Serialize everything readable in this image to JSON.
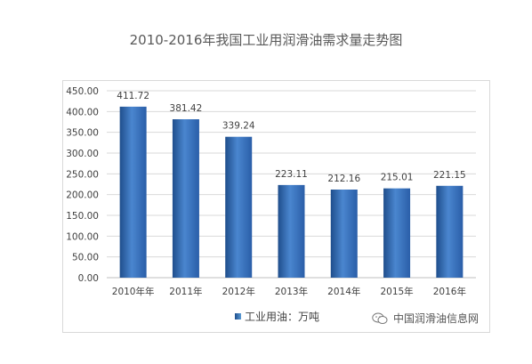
{
  "chart_data": {
    "type": "bar",
    "title": "2010-2016年我国工业用润滑油需求量走势图",
    "categories": [
      "2010年年",
      "2011年",
      "2012年",
      "2013年",
      "2014年",
      "2015年",
      "2016年"
    ],
    "series": [
      {
        "name": "工业用油：万吨",
        "values": [
          411.72,
          381.42,
          339.24,
          223.11,
          212.16,
          215.01,
          221.15
        ],
        "color": "#3d6fb5"
      }
    ],
    "data_labels": [
      "411.72",
      "381.42",
      "339.24",
      "223.11",
      "212.16",
      "215.01",
      "221.15"
    ],
    "y_ticks": [
      "0.00",
      "50.00",
      "100.00",
      "150.00",
      "200.00",
      "250.00",
      "300.00",
      "350.00",
      "400.00",
      "450.00"
    ],
    "ylim": [
      0,
      450
    ],
    "xlabel": "",
    "ylabel": "",
    "grid": true,
    "legend_position": "bottom"
  },
  "legend": {
    "label": "工业用油：万吨"
  },
  "watermark": {
    "text": "中国润滑油信息网",
    "icon": "wechat-icon"
  }
}
